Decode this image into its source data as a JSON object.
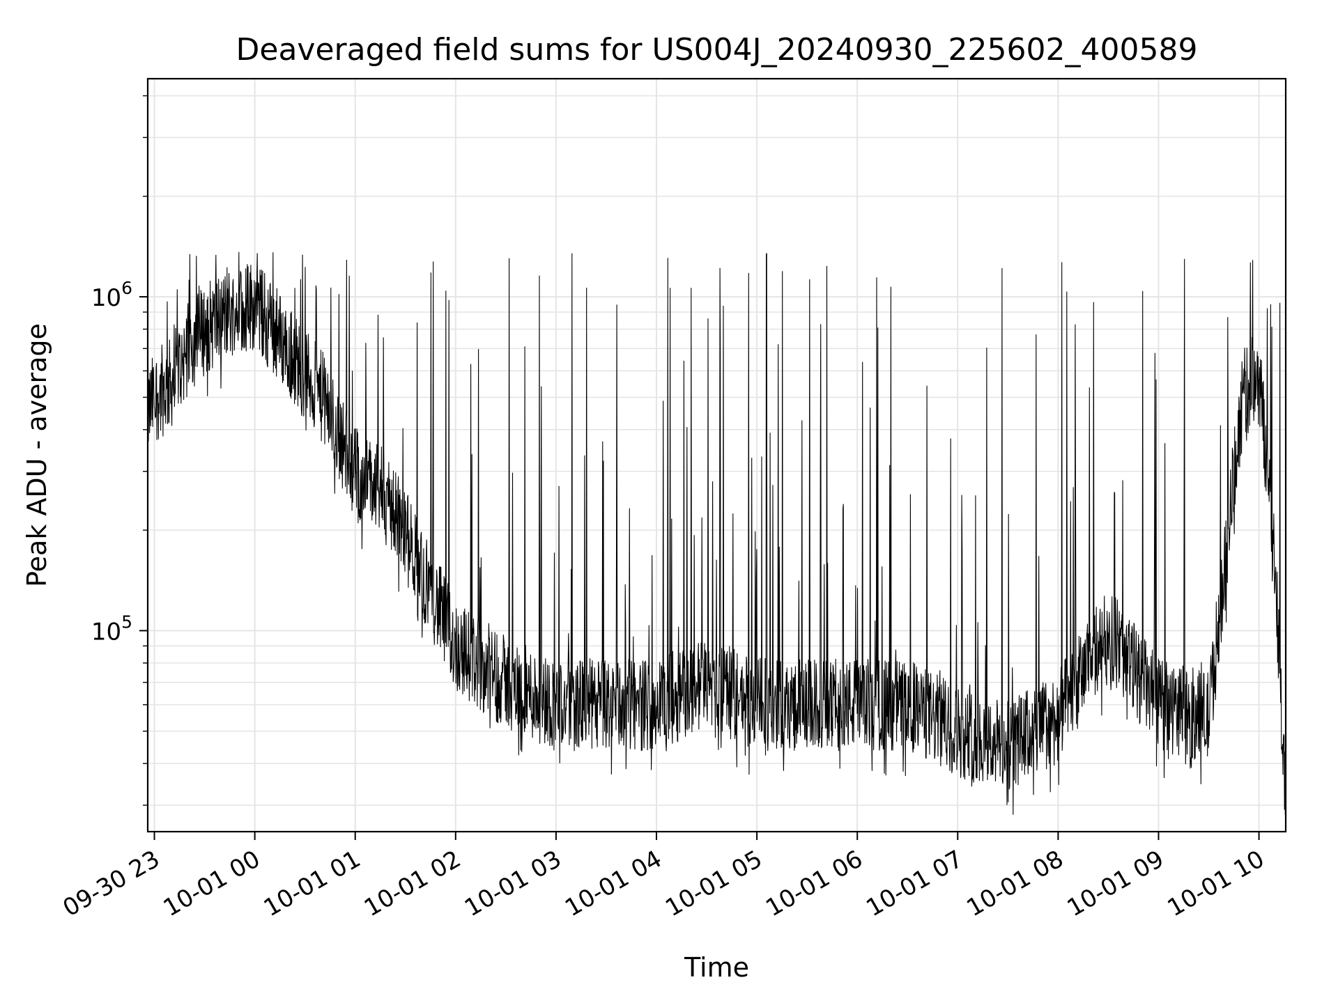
{
  "chart_data": {
    "type": "line",
    "title": "Deaveraged field sums for US004J_20240930_225602_400589",
    "xlabel": "Time",
    "ylabel": "Peak ADU - average",
    "y_scale": "log",
    "ylim": [
      25000,
      4500000
    ],
    "xlim": [
      "2024-09-30 22:56:02",
      "2024-10-01 10:16:00"
    ],
    "grid": true,
    "line_color": "#000000",
    "grid_color": "#e5e5e5",
    "x_ticks": [
      {
        "t": "2024-09-30 23:00",
        "label": "09-30 23"
      },
      {
        "t": "2024-10-01 00:00",
        "label": "10-01 00"
      },
      {
        "t": "2024-10-01 01:00",
        "label": "10-01 01"
      },
      {
        "t": "2024-10-01 02:00",
        "label": "10-01 02"
      },
      {
        "t": "2024-10-01 03:00",
        "label": "10-01 03"
      },
      {
        "t": "2024-10-01 04:00",
        "label": "10-01 04"
      },
      {
        "t": "2024-10-01 05:00",
        "label": "10-01 05"
      },
      {
        "t": "2024-10-01 06:00",
        "label": "10-01 06"
      },
      {
        "t": "2024-10-01 07:00",
        "label": "10-01 07"
      },
      {
        "t": "2024-10-01 08:00",
        "label": "10-01 08"
      },
      {
        "t": "2024-10-01 09:00",
        "label": "10-01 09"
      },
      {
        "t": "2024-10-01 10:00",
        "label": "10-01 10"
      }
    ],
    "y_ticks": [
      {
        "value": 100000,
        "base": "10",
        "exp": "5"
      },
      {
        "value": 1000000,
        "base": "10",
        "exp": "6"
      }
    ],
    "series": [
      {
        "x": [
          "2024-09-30 22:56",
          "2024-09-30 23:00",
          "2024-09-30 23:10",
          "2024-09-30 23:20",
          "2024-09-30 23:30",
          "2024-09-30 23:45",
          "2024-10-01 00:00",
          "2024-10-01 00:20",
          "2024-10-01 00:40",
          "2024-10-01 01:00",
          "2024-10-01 01:20",
          "2024-10-01 01:40",
          "2024-10-01 02:00",
          "2024-10-01 02:30",
          "2024-10-01 03:00",
          "2024-10-01 03:30",
          "2024-10-01 04:00",
          "2024-10-01 04:30",
          "2024-10-01 05:00",
          "2024-10-01 05:30",
          "2024-10-01 06:00",
          "2024-10-01 06:30",
          "2024-10-01 07:00",
          "2024-10-01 07:30",
          "2024-10-01 08:00",
          "2024-10-01 08:30",
          "2024-10-01 09:00",
          "2024-10-01 09:30",
          "2024-10-01 09:50",
          "2024-10-01 10:00",
          "2024-10-01 10:10",
          "2024-10-01 10:16"
        ],
        "y": [
          450000,
          500000,
          550000,
          700000,
          800000,
          900000,
          950000,
          700000,
          500000,
          300000,
          250000,
          150000,
          90000,
          70000,
          60000,
          60000,
          60000,
          70000,
          60000,
          60000,
          60000,
          60000,
          50000,
          45000,
          55000,
          100000,
          60000,
          55000,
          500000,
          600000,
          150000,
          30000
        ]
      }
    ]
  }
}
